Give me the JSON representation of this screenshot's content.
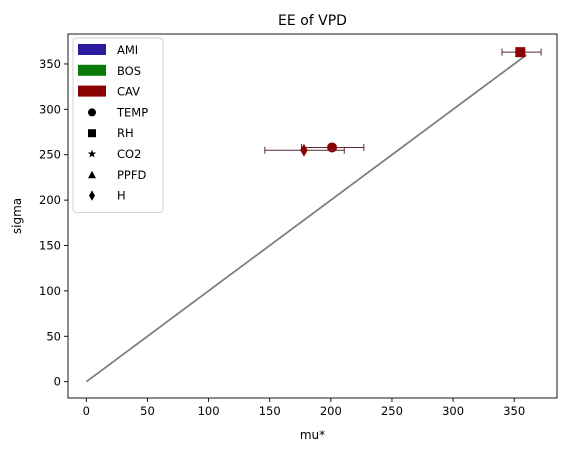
{
  "chart_data": {
    "type": "scatter",
    "title": "EE of VPD",
    "xlabel": "mu*",
    "ylabel": "sigma",
    "xlim": [
      -15,
      385
    ],
    "ylim": [
      -18,
      383
    ],
    "xticks": [
      0,
      50,
      100,
      150,
      200,
      250,
      300,
      350
    ],
    "yticks": [
      0,
      50,
      100,
      150,
      200,
      250,
      300,
      350
    ],
    "grid": false,
    "legend_position": "top-left",
    "reference_line": {
      "x": [
        0,
        360
      ],
      "y": [
        0,
        360
      ],
      "color": "#808080"
    },
    "color_legend": [
      {
        "label": "AMI",
        "color": "#2a1a9e"
      },
      {
        "label": "BOS",
        "color": "#0a7a0a"
      },
      {
        "label": "CAV",
        "color": "#8b0000"
      }
    ],
    "marker_legend": [
      {
        "label": "TEMP",
        "marker": "circle"
      },
      {
        "label": "RH",
        "marker": "square"
      },
      {
        "label": "CO2",
        "marker": "star"
      },
      {
        "label": "PPFD",
        "marker": "triangle"
      },
      {
        "label": "H",
        "marker": "diamond"
      }
    ],
    "series": [
      {
        "name": "CAV",
        "color": "#8b0000",
        "points": [
          {
            "parameter": "TEMP",
            "marker": "circle",
            "x": 201,
            "y": 258,
            "xerr_low": 176,
            "xerr_high": 227
          },
          {
            "parameter": "H",
            "marker": "diamond",
            "x": 178,
            "y": 255,
            "xerr_low": 146,
            "xerr_high": 211
          },
          {
            "parameter": "RH",
            "marker": "square",
            "x": 355,
            "y": 363,
            "xerr_low": 340,
            "xerr_high": 372
          }
        ]
      }
    ]
  }
}
